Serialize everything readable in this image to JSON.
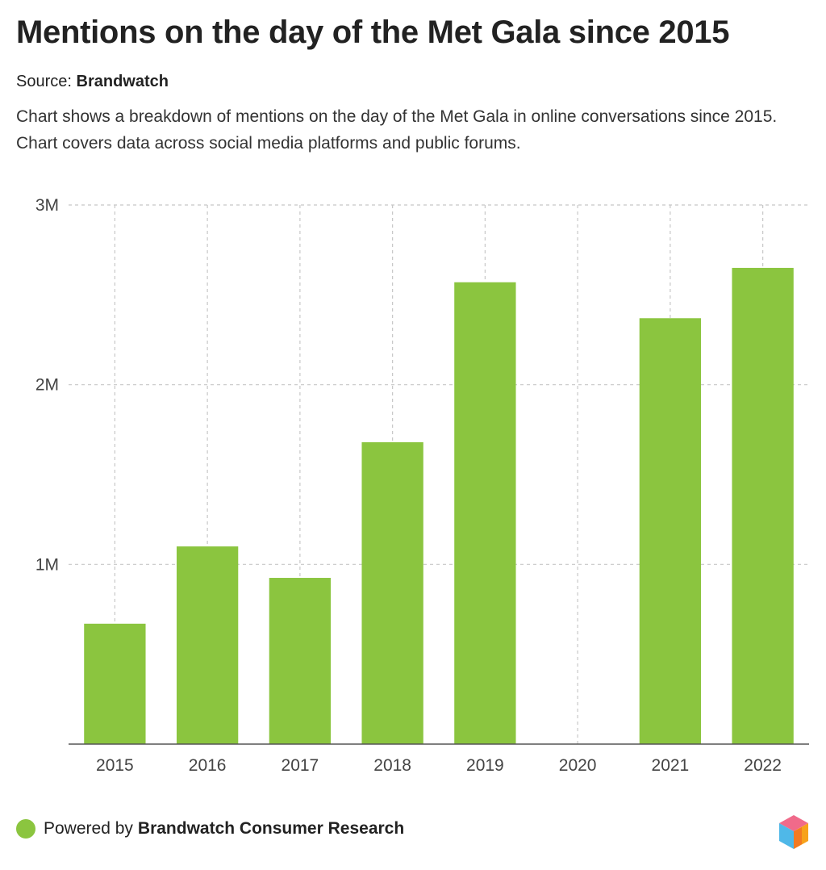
{
  "title": "Mentions on the day of the Met Gala since 2015",
  "source": {
    "label": "Source:",
    "name": "Brandwatch"
  },
  "description": "Chart shows a breakdown of mentions on the day of the Met Gala in online conversations since 2015. Chart covers data across social media platforms and public forums.",
  "footer": {
    "powered_label": "Powered by",
    "powered_name": "Brandwatch Consumer Research"
  },
  "colors": {
    "bar": "#8bc53f",
    "grid": "#c8c8c8",
    "axis": "#555555"
  },
  "chart_data": {
    "type": "bar",
    "title": "Mentions on the day of the Met Gala since 2015",
    "xlabel": "",
    "ylabel": "",
    "categories": [
      "2015",
      "2016",
      "2017",
      "2018",
      "2019",
      "2020",
      "2021",
      "2022"
    ],
    "values": [
      670000,
      1100000,
      925000,
      1680000,
      2570000,
      0,
      2370000,
      2650000
    ],
    "ylim": [
      0,
      3000000
    ],
    "yticks": [
      1000000,
      2000000,
      3000000
    ],
    "ytick_labels": [
      "1M",
      "2M",
      "3M"
    ],
    "grid": true,
    "legend": "bottom-left"
  }
}
